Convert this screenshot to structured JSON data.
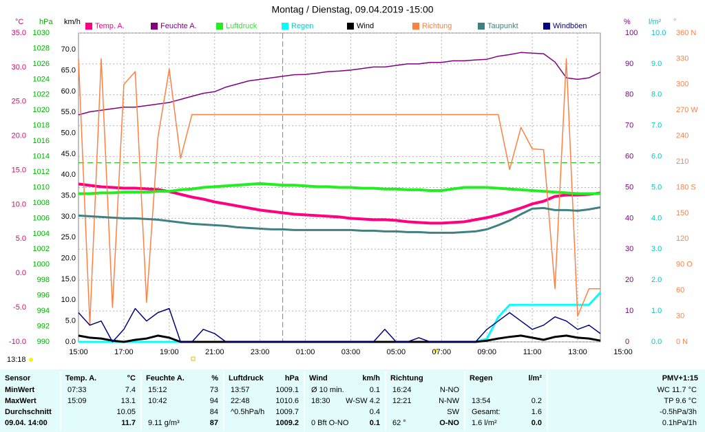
{
  "chart_data": {
    "type": "line",
    "title": "Montag / Dienstag, 09.04.2019  -15:00",
    "grid": true,
    "categories": [
      "15:00",
      null,
      null,
      null,
      "17:00",
      null,
      null,
      null,
      "19:00",
      null,
      null,
      null,
      "21:00",
      null,
      null,
      null,
      "23:00",
      null,
      null,
      null,
      "01:00",
      null,
      null,
      null,
      "03:00",
      null,
      null,
      null,
      "05:00",
      null,
      null,
      null,
      "07:00",
      null,
      null,
      null,
      "09:00",
      null,
      null,
      null,
      "11:00",
      null,
      null,
      null,
      "13:00",
      null,
      null,
      null,
      "15:00"
    ],
    "axes": [
      {
        "label": "°C",
        "color": "#e0006e",
        "ylim": [
          -10,
          35
        ],
        "yticks": [
          {
            "value": -10,
            "label": "-10.0"
          },
          {
            "value": -5,
            "label": "-5.0"
          },
          {
            "value": 0,
            "label": "0.0"
          },
          {
            "value": 5,
            "label": "5.0"
          },
          {
            "value": 10,
            "label": "10.0"
          },
          {
            "value": 15,
            "label": "15.0"
          },
          {
            "value": 20,
            "label": "20.0"
          },
          {
            "value": 25,
            "label": "25.0"
          },
          {
            "value": 30,
            "label": "30.0"
          },
          {
            "value": 35,
            "label": "35.0"
          }
        ]
      },
      {
        "label": "hPa",
        "color": "#00b000",
        "ylim": [
          990,
          1030
        ],
        "yticks": [
          990,
          992,
          994,
          996,
          998,
          1000,
          1002,
          1004,
          1006,
          1008,
          1010,
          1012,
          1014,
          1016,
          1018,
          1020,
          1022,
          1024,
          1026,
          1028,
          1030
        ]
      },
      {
        "label": "km/h",
        "color": "#000000",
        "ylim": [
          0,
          74
        ],
        "yticks": [
          {
            "value": 0,
            "label": "0.0"
          },
          {
            "value": 5,
            "label": "5.0"
          },
          {
            "value": 10,
            "label": "10.0"
          },
          {
            "value": 15,
            "label": "15.0"
          },
          {
            "value": 20,
            "label": "20.0"
          },
          {
            "value": 25,
            "label": "25.0"
          },
          {
            "value": 30,
            "label": "30.0"
          },
          {
            "value": 35,
            "label": "35.0"
          },
          {
            "value": 40,
            "label": "40.0"
          },
          {
            "value": 45,
            "label": "45.0"
          },
          {
            "value": 50,
            "label": "50.0"
          },
          {
            "value": 55,
            "label": "55.0"
          },
          {
            "value": 60,
            "label": "60.0"
          },
          {
            "value": 65,
            "label": "65.0"
          },
          {
            "value": 70,
            "label": "70.0"
          }
        ]
      },
      {
        "label": "%",
        "color": "#800080",
        "ylim": [
          0,
          100
        ],
        "yticks": [
          0,
          10,
          20,
          30,
          40,
          50,
          60,
          70,
          80,
          90,
          100
        ]
      },
      {
        "label": "l/m²",
        "color": "#00c8c8",
        "ylim": [
          0,
          10
        ],
        "yticks": [
          {
            "value": 0,
            "label": "0.0"
          },
          {
            "value": 1,
            "label": "1.0"
          },
          {
            "value": 2,
            "label": "2.0"
          },
          {
            "value": 3,
            "label": "3.0"
          },
          {
            "value": 4,
            "label": "4.0"
          },
          {
            "value": 5,
            "label": "5.0"
          },
          {
            "value": 6,
            "label": "6.0"
          },
          {
            "value": 7,
            "label": "7.0"
          },
          {
            "value": 8,
            "label": "8.0"
          },
          {
            "value": 9,
            "label": "9.0"
          },
          {
            "value": 10,
            "label": "10.0"
          }
        ]
      },
      {
        "label": "°",
        "color": "#ff8040",
        "ylim": [
          0,
          360
        ],
        "yticks": [
          {
            "value": 0,
            "label": "0 N"
          },
          30,
          60,
          {
            "value": 90,
            "label": "90 O"
          },
          120,
          150,
          {
            "value": 180,
            "label": "180 S"
          },
          210,
          240,
          {
            "value": 270,
            "label": "270 W"
          },
          300,
          330,
          {
            "value": 360,
            "label": "360 N"
          }
        ]
      }
    ],
    "reference_lines": [
      {
        "axis": "hPa",
        "value": 1013.2,
        "color": "#00c000"
      }
    ],
    "series": [
      {
        "name": "Temp. A.",
        "color": "#ff0080",
        "axis": "°C",
        "values": [
          13.0,
          12.8,
          12.6,
          12.5,
          12.4,
          12.4,
          12.3,
          12.2,
          11.9,
          11.5,
          11.1,
          10.8,
          10.4,
          10.1,
          9.8,
          9.5,
          9.2,
          9.0,
          8.8,
          8.6,
          8.5,
          8.4,
          8.3,
          8.2,
          8.0,
          7.9,
          7.8,
          7.8,
          7.7,
          7.5,
          7.4,
          7.3,
          7.3,
          7.4,
          7.5,
          7.8,
          8.1,
          8.5,
          9.0,
          9.5,
          10.1,
          10.5,
          11.2,
          11.4,
          11.4,
          11.5,
          11.7,
          null,
          null
        ]
      },
      {
        "name": "Feuchte A.",
        "color": "#800080",
        "axis": "%",
        "values": [
          73.5,
          74.5,
          75,
          75.5,
          76,
          76,
          76.5,
          77,
          77.5,
          78.5,
          79.5,
          80.5,
          81,
          82.5,
          83.5,
          84.5,
          85,
          85.5,
          86,
          86.5,
          86.6,
          87,
          87.5,
          87.7,
          88,
          88.5,
          89,
          89,
          89.5,
          90,
          90,
          90.5,
          90.5,
          91,
          91,
          91.3,
          91.5,
          92.5,
          93,
          93.7,
          93.5,
          93.3,
          90.6,
          85.5,
          85,
          85.5,
          87.3,
          null,
          null
        ]
      },
      {
        "name": "Luftdruck",
        "color": "#22ee22",
        "axis": "hPa",
        "values": [
          1009.2,
          1009.2,
          1009.3,
          1009.3,
          1009.4,
          1009.4,
          1009.4,
          1009.5,
          1009.5,
          1009.7,
          1009.8,
          1010.0,
          1010.1,
          1010.2,
          1010.3,
          1010.4,
          1010.5,
          1010.4,
          1010.3,
          1010.3,
          1010.2,
          1010.1,
          1010.1,
          1010.0,
          1010.0,
          1009.9,
          1009.9,
          1009.8,
          1009.8,
          1009.7,
          1009.7,
          1009.6,
          1009.6,
          1009.8,
          1010.0,
          1010.0,
          1010.0,
          1009.9,
          1009.8,
          1009.7,
          1009.6,
          1009.5,
          1009.4,
          1009.3,
          1009.2,
          1009.2,
          1009.2,
          null,
          null
        ]
      },
      {
        "name": "Regen",
        "color": "#00ffff",
        "axis": "l/m²",
        "values": [
          0,
          0,
          0,
          0,
          0,
          0,
          0,
          0,
          0,
          0,
          0,
          0,
          0,
          0,
          0,
          0,
          0,
          0,
          0,
          0,
          0,
          0,
          0,
          0,
          0,
          0,
          0,
          0,
          0,
          0,
          0,
          0,
          0,
          0,
          0,
          0,
          0.1,
          0.8,
          1.2,
          1.2,
          1.2,
          1.2,
          1.2,
          1.2,
          1.2,
          1.2,
          1.6,
          null,
          null
        ]
      },
      {
        "name": "Wind",
        "color": "#000000",
        "axis": "km/h",
        "values": [
          1.5,
          1,
          0.8,
          0.3,
          0,
          0.5,
          0.8,
          1.5,
          1,
          0,
          0,
          0,
          0,
          0,
          0,
          0,
          0,
          0,
          0,
          0,
          0,
          0,
          0,
          0,
          0,
          0,
          0,
          0,
          0,
          0,
          0,
          0,
          0,
          0,
          0,
          0,
          0.3,
          0.8,
          1.2,
          1.5,
          1,
          0.5,
          1.2,
          1.5,
          1,
          0.8,
          0.3,
          null,
          null
        ]
      },
      {
        "name": "Richtung",
        "color": "#ff8040",
        "axis": "°",
        "values": [
          330,
          20,
          330,
          40,
          300,
          315,
          46,
          238,
          318,
          214,
          265,
          265,
          265,
          265,
          265,
          265,
          265,
          265,
          265,
          265,
          265,
          265,
          265,
          265,
          265,
          265,
          265,
          265,
          265,
          265,
          265,
          265,
          265,
          265,
          265,
          265,
          265,
          265,
          201,
          250,
          225,
          224,
          62,
          330,
          30,
          62,
          62,
          null,
          null
        ]
      },
      {
        "name": "Taupunkt",
        "color": "#408080",
        "axis": "°C",
        "values": [
          8.4,
          8.3,
          8.2,
          8.1,
          8.0,
          8.0,
          7.9,
          7.8,
          7.6,
          7.4,
          7.2,
          7.1,
          7.0,
          6.9,
          6.7,
          6.6,
          6.5,
          6.4,
          6.4,
          6.3,
          6.3,
          6.3,
          6.3,
          6.3,
          6.3,
          6.2,
          6.2,
          6.1,
          6.1,
          6.0,
          6.0,
          5.9,
          5.9,
          5.9,
          6.0,
          6.1,
          6.4,
          7.0,
          7.7,
          8.6,
          9.4,
          9.5,
          9.2,
          9.2,
          9.1,
          9.3,
          9.6,
          null,
          null
        ]
      },
      {
        "name": "Windböen",
        "color": "#000080",
        "axis": "km/h",
        "values": [
          7,
          4,
          5,
          0,
          3,
          8,
          5,
          7,
          8,
          0,
          0,
          3,
          2,
          0,
          0,
          0,
          0,
          0,
          0,
          0,
          0,
          0,
          0,
          0,
          0,
          0,
          0,
          3,
          0,
          0,
          1,
          0,
          0,
          0,
          0,
          0,
          3,
          5,
          7,
          5,
          3,
          4,
          6,
          5,
          3,
          4,
          2,
          null,
          null
        ]
      }
    ]
  },
  "sun_time": "13:18",
  "table": {
    "columns": [
      {
        "header": "Sensor",
        "rows": [
          [
            "MinWert"
          ],
          [
            "MaxWert"
          ],
          [
            "Durchschnitt"
          ],
          [
            "09.04. 14:00"
          ]
        ]
      },
      {
        "header": "Temp. A.",
        "unit": "°C",
        "rows": [
          [
            "07:33",
            "7.4"
          ],
          [
            "15:09",
            "13.1"
          ],
          [
            "10.05"
          ],
          [
            "11.7"
          ]
        ]
      },
      {
        "header": "Feuchte A.",
        "unit": "%",
        "rows": [
          [
            "15:12",
            "73"
          ],
          [
            "10:42",
            "94"
          ],
          [
            "84"
          ],
          [
            "9.11 g/m³",
            "87"
          ]
        ]
      },
      {
        "header": "Luftdruck",
        "unit": "hPa",
        "rows": [
          [
            "13:57",
            "1009.1"
          ],
          [
            "22:48",
            "1010.6"
          ],
          [
            "^0.5hPa/h",
            "1009.7"
          ],
          [
            "1009.2"
          ]
        ]
      },
      {
        "header": "Wind",
        "unit": "km/h",
        "rows": [
          [
            "Ø 10 min.",
            "0.1"
          ],
          [
            "18:30",
            "W-SW 4.2"
          ],
          [
            "0.4"
          ],
          [
            "0 Bft O-NO",
            "0.1"
          ]
        ]
      },
      {
        "header": "Richtung",
        "rows": [
          [
            "16:24",
            "N-NO"
          ],
          [
            "12:21",
            "N-NW"
          ],
          [
            "SW"
          ],
          [
            "62 °",
            "O-NO"
          ]
        ]
      },
      {
        "header": "Regen",
        "unit": "l/m²",
        "rows": [
          null,
          [
            "13:54",
            "0.2"
          ],
          [
            "Gesamt:",
            "1.6"
          ],
          [
            "1.6 l/m²",
            "0.0"
          ]
        ]
      },
      {
        "header": "PMV+1:15",
        "rows": [
          [
            "WC 11.7 °C"
          ],
          [
            "TP 9.6 °C"
          ],
          [
            "-0.5hPa/3h"
          ],
          [
            "0.1hPa/1h"
          ]
        ]
      }
    ]
  }
}
